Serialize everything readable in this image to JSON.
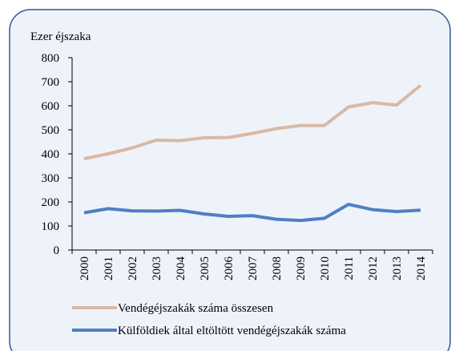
{
  "chart_data": {
    "type": "line",
    "y_axis_label": "Ezer éjszaka",
    "categories": [
      "2000",
      "2001",
      "2002",
      "2003",
      "2004",
      "2005",
      "2006",
      "2007",
      "2008",
      "2009",
      "2010",
      "2011",
      "2012",
      "2013",
      "2014"
    ],
    "series": [
      {
        "name": "Vendégéjszakák száma összesen",
        "color": "#d9b9a4",
        "values": [
          380,
          400,
          425,
          457,
          455,
          467,
          468,
          485,
          505,
          518,
          518,
          595,
          613,
          603,
          685
        ]
      },
      {
        "name": "Külföldiek által eltöltött vendégéjszakák száma",
        "color": "#4f7fc4",
        "values": [
          155,
          172,
          163,
          162,
          165,
          150,
          140,
          143,
          128,
          123,
          132,
          190,
          168,
          160,
          166
        ]
      }
    ],
    "ylim": [
      0,
      800
    ],
    "yticks": [
      0,
      100,
      200,
      300,
      400,
      500,
      600,
      700,
      800
    ],
    "grid": false,
    "legend": "bottom"
  }
}
